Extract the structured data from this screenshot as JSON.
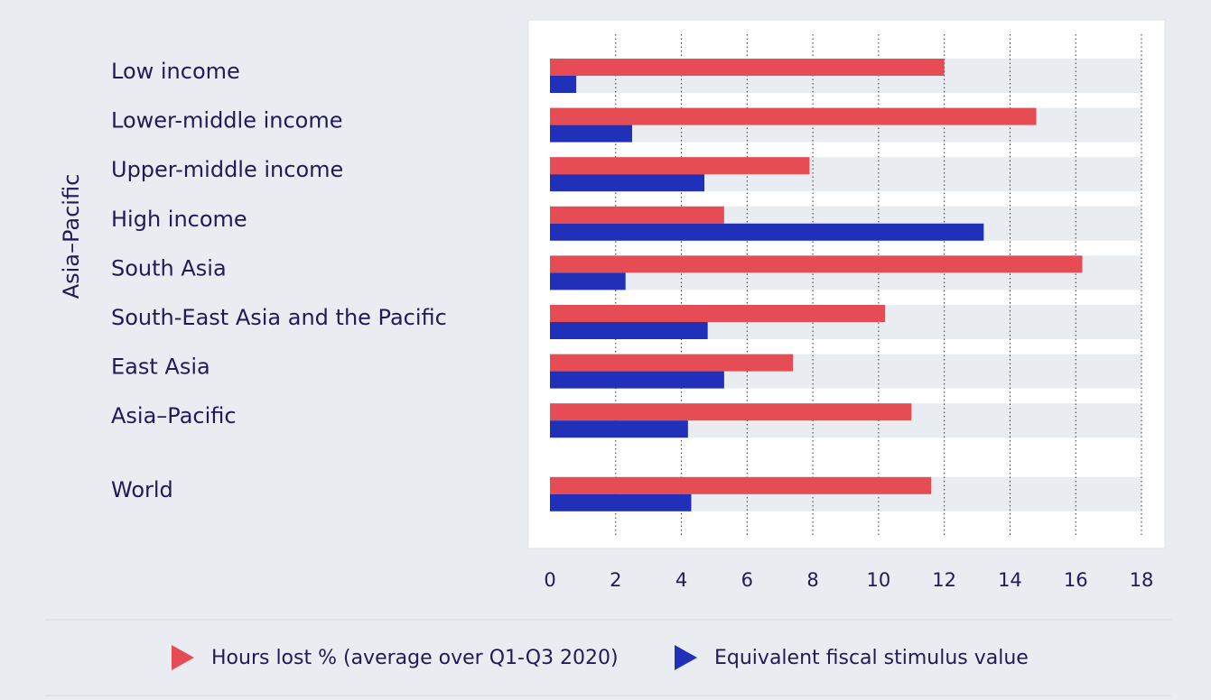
{
  "chart_data": {
    "type": "bar",
    "orientation": "horizontal",
    "group_label": "Asia–Pacific",
    "categories": [
      "Low income",
      "Lower-middle income",
      "Upper-middle income",
      "High income",
      "South Asia",
      "South-East Asia and the Pacific",
      "East Asia",
      "Asia–Pacific",
      "World"
    ],
    "series": [
      {
        "name": "Hours lost % (average over Q1-Q3 2020)",
        "color": "#e64c54",
        "values": [
          12.0,
          14.8,
          7.9,
          5.3,
          16.2,
          10.2,
          7.4,
          11.0,
          11.6
        ]
      },
      {
        "name": "Equivalent fiscal stimulus value",
        "color": "#2130b8",
        "values": [
          0.8,
          2.5,
          4.7,
          13.2,
          2.3,
          4.8,
          5.3,
          4.2,
          4.3
        ]
      }
    ],
    "xlim": [
      0,
      18
    ],
    "xticks": [
      0,
      2,
      4,
      6,
      8,
      10,
      12,
      14,
      16,
      18
    ],
    "grid": true
  }
}
